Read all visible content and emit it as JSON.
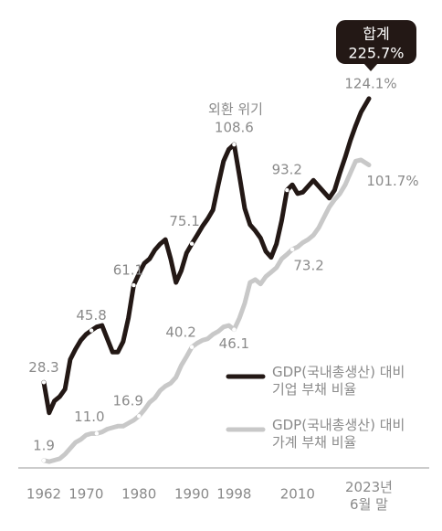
{
  "chart_data": {
    "type": "line",
    "annotation": "외환 위기",
    "total_badge": {
      "title": "합계",
      "value": 225.7,
      "label": "225.7%"
    },
    "x": [
      1962,
      1963,
      1964,
      1965,
      1966,
      1967,
      1968,
      1969,
      1970,
      1971,
      1972,
      1973,
      1974,
      1975,
      1976,
      1977,
      1978,
      1979,
      1980,
      1981,
      1982,
      1983,
      1984,
      1985,
      1986,
      1987,
      1988,
      1989,
      1990,
      1991,
      1992,
      1993,
      1994,
      1995,
      1996,
      1997,
      1998,
      1999,
      2000,
      2001,
      2002,
      2003,
      2004,
      2005,
      2006,
      2007,
      2008,
      2009,
      2010,
      2011,
      2012,
      2013,
      2014,
      2015,
      2016,
      2017,
      2018,
      2019,
      2020,
      2021,
      2022,
      2023.5
    ],
    "xlim": [
      1962,
      2023.5
    ],
    "xticks": [
      1962,
      1970,
      1980,
      1990,
      1998,
      2010,
      {
        "value": 2023.5,
        "label": "2023년 6월 말"
      }
    ],
    "ylim": [
      0,
      150
    ],
    "series": [
      {
        "name": "GDP(국내총생산) 대비 기업 부채 비율",
        "color": "#231815",
        "values": [
          28.3,
          18,
          22,
          23.5,
          26,
          36,
          39.5,
          42.5,
          44.5,
          45.8,
          47,
          47.5,
          43,
          38.5,
          38.5,
          42,
          50,
          61.1,
          65,
          68.5,
          70,
          73,
          75,
          76.5,
          70,
          62,
          66,
          72,
          75.1,
          78,
          81,
          83.5,
          86.5,
          95,
          103,
          107,
          108.6,
          98,
          87,
          81.5,
          79.5,
          77,
          72.5,
          70.5,
          75,
          83,
          93.2,
          95,
          92,
          92.5,
          94.5,
          96.5,
          94.5,
          92.5,
          90.5,
          93.2,
          99,
          104.3,
          110,
          115,
          119.5,
          124.1
        ],
        "value_labels": [
          "28.3",
          null,
          null,
          null,
          null,
          null,
          null,
          null,
          null,
          "45.8",
          null,
          null,
          null,
          null,
          null,
          null,
          null,
          "61.1",
          null,
          null,
          null,
          null,
          null,
          null,
          null,
          null,
          null,
          null,
          "75.1",
          null,
          null,
          null,
          null,
          null,
          null,
          null,
          "108.6",
          null,
          null,
          null,
          null,
          null,
          null,
          null,
          null,
          null,
          "93.2",
          null,
          null,
          null,
          null,
          null,
          null,
          null,
          null,
          null,
          null,
          null,
          null,
          null,
          null,
          "124.1%"
        ]
      },
      {
        "name": "GDP(국내총생산) 대비 가계 부채 비율",
        "color": "#c8c8c8",
        "values": [
          1.9,
          1.5,
          2,
          2.5,
          4,
          6,
          8,
          9,
          10.5,
          11,
          11.0,
          11.5,
          12.5,
          13,
          13.5,
          13.5,
          14.5,
          15.5,
          16.9,
          19,
          21.5,
          23,
          25.5,
          27,
          28,
          30,
          34,
          37,
          40.2,
          41.5,
          42.5,
          43,
          44.5,
          45.5,
          47,
          47.5,
          46.1,
          50,
          55,
          62,
          63,
          61.5,
          64,
          65.5,
          67,
          70,
          71.5,
          73.2,
          74,
          75.5,
          76.5,
          78,
          80.5,
          84,
          87.5,
          90,
          92,
          95,
          99,
          103,
          103.4,
          101.7
        ],
        "value_labels": [
          "1.9",
          null,
          null,
          null,
          null,
          null,
          null,
          null,
          null,
          null,
          "11.0",
          null,
          null,
          null,
          null,
          null,
          null,
          null,
          "16.9",
          null,
          null,
          null,
          null,
          null,
          null,
          null,
          null,
          null,
          "40.2",
          null,
          null,
          null,
          null,
          null,
          null,
          null,
          "46.1",
          null,
          null,
          null,
          null,
          null,
          null,
          null,
          null,
          null,
          null,
          "73.2",
          null,
          null,
          null,
          null,
          null,
          null,
          null,
          null,
          null,
          null,
          null,
          null,
          null,
          "101.7%"
        ]
      }
    ]
  }
}
